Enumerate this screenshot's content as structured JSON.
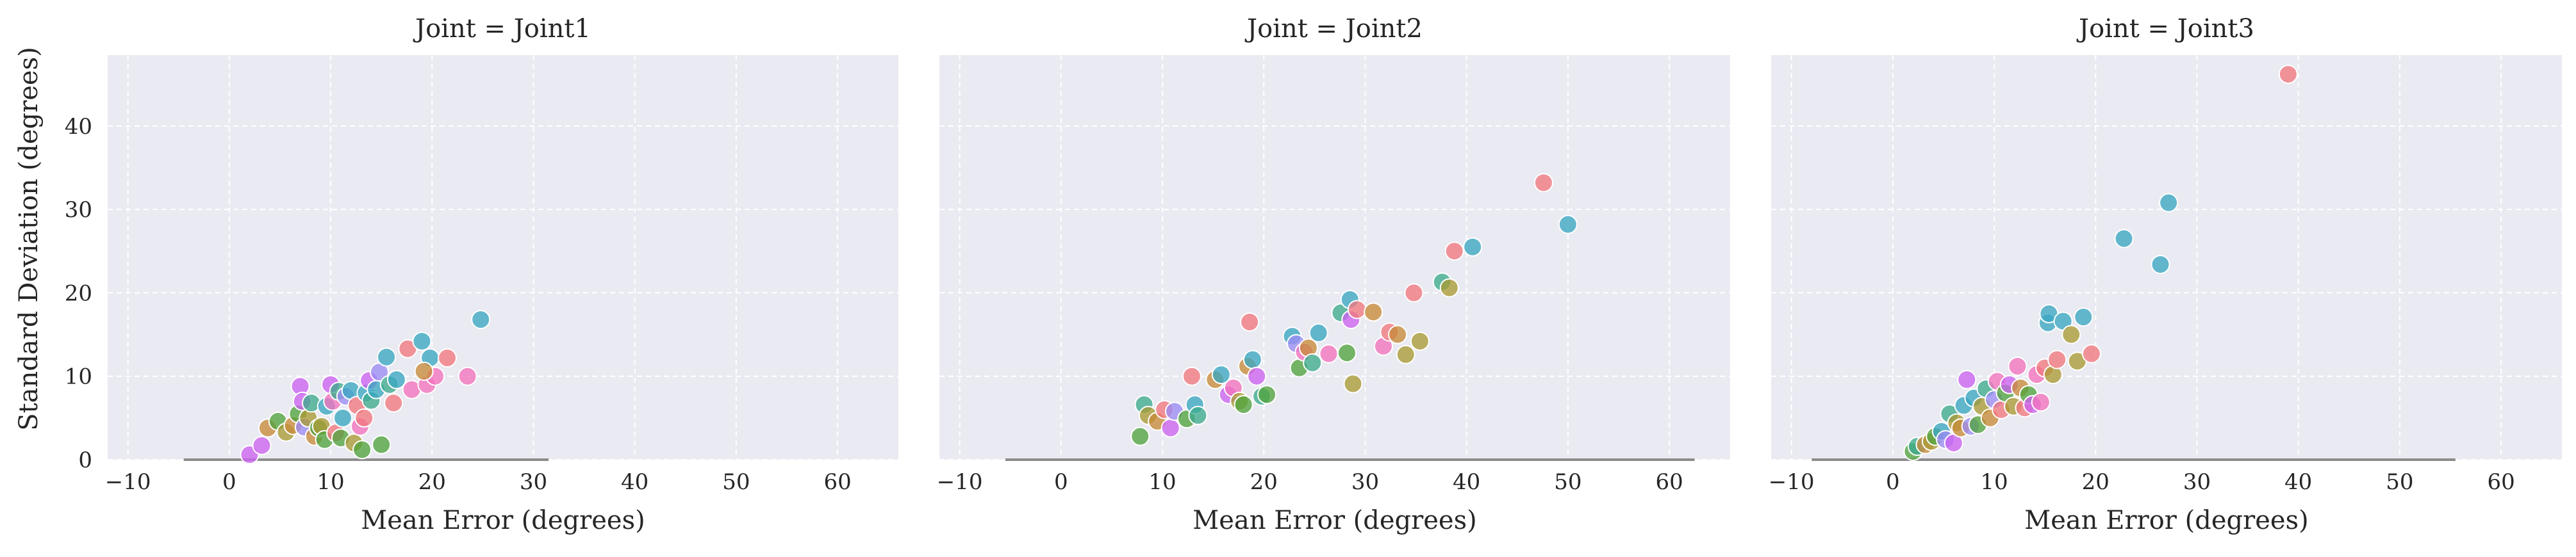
{
  "figure": {
    "ylabel": "Standard Deviation (degrees)"
  },
  "chart_data": [
    {
      "type": "scatter",
      "title": "Joint = Joint1",
      "xlabel": "Mean Error (degrees)",
      "ylabel": "Standard Deviation (degrees)",
      "xlim": [
        -12,
        66
      ],
      "ylim": [
        0,
        48.5
      ],
      "xticks": [
        "−10",
        "0",
        "10",
        "20",
        "30",
        "40",
        "50",
        "60"
      ],
      "xtick_values": [
        -10,
        0,
        10,
        20,
        30,
        40,
        50,
        60
      ],
      "yticks": [
        "0",
        "10",
        "20",
        "30",
        "40"
      ],
      "ytick_values": [
        0,
        10,
        20,
        30,
        40
      ],
      "grid": true,
      "hue_encoding": "per-marker color, no legend shown",
      "hline_segment": {
        "y": 0,
        "x_start": -4.5,
        "x_end": 31.5
      },
      "points": [
        {
          "x": 2.0,
          "y": 0.6,
          "color": "#cc61f0"
        },
        {
          "x": 3.2,
          "y": 1.7,
          "color": "#cc61f0"
        },
        {
          "x": 3.8,
          "y": 3.8,
          "color": "#c68a38"
        },
        {
          "x": 4.8,
          "y": 4.6,
          "color": "#51a33e"
        },
        {
          "x": 5.6,
          "y": 3.3,
          "color": "#a99a34"
        },
        {
          "x": 6.3,
          "y": 4.1,
          "color": "#c68a38"
        },
        {
          "x": 6.8,
          "y": 5.5,
          "color": "#51a33e"
        },
        {
          "x": 7.0,
          "y": 8.8,
          "color": "#cc61f0"
        },
        {
          "x": 7.2,
          "y": 7.0,
          "color": "#cc61f0"
        },
        {
          "x": 7.4,
          "y": 3.9,
          "color": "#9b8cf3"
        },
        {
          "x": 7.8,
          "y": 5.0,
          "color": "#a99a34"
        },
        {
          "x": 8.1,
          "y": 6.8,
          "color": "#3eaa8d"
        },
        {
          "x": 8.4,
          "y": 2.8,
          "color": "#c68a38"
        },
        {
          "x": 8.8,
          "y": 3.8,
          "color": "#51a33e"
        },
        {
          "x": 9.1,
          "y": 4.0,
          "color": "#a99a34"
        },
        {
          "x": 9.4,
          "y": 2.4,
          "color": "#51a33e"
        },
        {
          "x": 9.6,
          "y": 6.4,
          "color": "#3aa6c2"
        },
        {
          "x": 10.0,
          "y": 9.0,
          "color": "#cc61f0"
        },
        {
          "x": 10.2,
          "y": 7.0,
          "color": "#f272bd"
        },
        {
          "x": 10.5,
          "y": 3.2,
          "color": "#f1777f"
        },
        {
          "x": 10.8,
          "y": 8.2,
          "color": "#3eaa8d"
        },
        {
          "x": 11.0,
          "y": 2.6,
          "color": "#51a33e"
        },
        {
          "x": 11.2,
          "y": 5.0,
          "color": "#3aa6c2"
        },
        {
          "x": 11.5,
          "y": 7.6,
          "color": "#9b8cf3"
        },
        {
          "x": 12.0,
          "y": 8.3,
          "color": "#3aa6c2"
        },
        {
          "x": 12.3,
          "y": 2.0,
          "color": "#a99a34"
        },
        {
          "x": 12.6,
          "y": 6.5,
          "color": "#f1777f"
        },
        {
          "x": 12.9,
          "y": 4.0,
          "color": "#f272bd"
        },
        {
          "x": 13.1,
          "y": 1.2,
          "color": "#51a33e"
        },
        {
          "x": 13.3,
          "y": 5.0,
          "color": "#f1777f"
        },
        {
          "x": 13.5,
          "y": 8.0,
          "color": "#3aa6c2"
        },
        {
          "x": 13.8,
          "y": 9.5,
          "color": "#cc61f0"
        },
        {
          "x": 14.0,
          "y": 7.1,
          "color": "#3eaa8d"
        },
        {
          "x": 14.5,
          "y": 8.4,
          "color": "#3aa6c2"
        },
        {
          "x": 14.8,
          "y": 10.5,
          "color": "#9b8cf3"
        },
        {
          "x": 15.0,
          "y": 1.8,
          "color": "#51a33e"
        },
        {
          "x": 15.5,
          "y": 12.3,
          "color": "#3aa6c2"
        },
        {
          "x": 15.8,
          "y": 9.0,
          "color": "#3eaa8d"
        },
        {
          "x": 16.2,
          "y": 6.8,
          "color": "#f1777f"
        },
        {
          "x": 16.5,
          "y": 9.6,
          "color": "#3aa6c2"
        },
        {
          "x": 17.6,
          "y": 13.3,
          "color": "#f1777f"
        },
        {
          "x": 18.0,
          "y": 8.4,
          "color": "#f272bd"
        },
        {
          "x": 19.0,
          "y": 14.2,
          "color": "#3aa6c2"
        },
        {
          "x": 19.5,
          "y": 9.0,
          "color": "#f272bd"
        },
        {
          "x": 19.8,
          "y": 12.2,
          "color": "#3aa6c2"
        },
        {
          "x": 20.3,
          "y": 10.0,
          "color": "#f272bd"
        },
        {
          "x": 21.5,
          "y": 12.2,
          "color": "#f1777f"
        },
        {
          "x": 23.5,
          "y": 10.0,
          "color": "#f272bd"
        },
        {
          "x": 24.8,
          "y": 16.8,
          "color": "#3aa6c2"
        },
        {
          "x": 19.2,
          "y": 10.6,
          "color": "#c68a38"
        }
      ]
    },
    {
      "type": "scatter",
      "title": "Joint = Joint2",
      "xlabel": "Mean Error (degrees)",
      "xlim": [
        -12,
        66
      ],
      "ylim": [
        0,
        48.5
      ],
      "xticks": [
        "−10",
        "0",
        "10",
        "20",
        "30",
        "40",
        "50",
        "60"
      ],
      "xtick_values": [
        -10,
        0,
        10,
        20,
        30,
        40,
        50,
        60
      ],
      "grid": true,
      "hline_segment": {
        "y": 0,
        "x_start": -5.5,
        "x_end": 62.5
      },
      "points": [
        {
          "x": 7.8,
          "y": 2.8,
          "color": "#51a33e"
        },
        {
          "x": 8.2,
          "y": 6.6,
          "color": "#3eaa8d"
        },
        {
          "x": 8.6,
          "y": 5.3,
          "color": "#a99a34"
        },
        {
          "x": 9.5,
          "y": 4.6,
          "color": "#c68a38"
        },
        {
          "x": 10.2,
          "y": 6.0,
          "color": "#f1777f"
        },
        {
          "x": 10.8,
          "y": 3.8,
          "color": "#cc61f0"
        },
        {
          "x": 11.2,
          "y": 5.8,
          "color": "#9b8cf3"
        },
        {
          "x": 12.4,
          "y": 4.9,
          "color": "#51a33e"
        },
        {
          "x": 12.9,
          "y": 10.0,
          "color": "#f1777f"
        },
        {
          "x": 13.2,
          "y": 6.6,
          "color": "#3aa6c2"
        },
        {
          "x": 13.5,
          "y": 5.3,
          "color": "#3eaa8d"
        },
        {
          "x": 15.2,
          "y": 9.6,
          "color": "#c68a38"
        },
        {
          "x": 15.8,
          "y": 10.2,
          "color": "#3aa6c2"
        },
        {
          "x": 16.5,
          "y": 7.8,
          "color": "#cc61f0"
        },
        {
          "x": 17.0,
          "y": 8.6,
          "color": "#f272bd"
        },
        {
          "x": 17.6,
          "y": 7.0,
          "color": "#a99a34"
        },
        {
          "x": 18.0,
          "y": 6.6,
          "color": "#51a33e"
        },
        {
          "x": 18.6,
          "y": 16.5,
          "color": "#f1777f"
        },
        {
          "x": 18.4,
          "y": 11.2,
          "color": "#c68a38"
        },
        {
          "x": 18.9,
          "y": 12.0,
          "color": "#3aa6c2"
        },
        {
          "x": 19.3,
          "y": 10.0,
          "color": "#cc61f0"
        },
        {
          "x": 19.8,
          "y": 7.6,
          "color": "#3eaa8d"
        },
        {
          "x": 20.3,
          "y": 7.8,
          "color": "#51a33e"
        },
        {
          "x": 22.8,
          "y": 14.8,
          "color": "#3aa6c2"
        },
        {
          "x": 23.2,
          "y": 13.9,
          "color": "#9b8cf3"
        },
        {
          "x": 23.5,
          "y": 11.0,
          "color": "#51a33e"
        },
        {
          "x": 24.0,
          "y": 12.9,
          "color": "#f272bd"
        },
        {
          "x": 24.4,
          "y": 13.4,
          "color": "#c68a38"
        },
        {
          "x": 24.8,
          "y": 11.6,
          "color": "#3eaa8d"
        },
        {
          "x": 25.4,
          "y": 15.2,
          "color": "#3aa6c2"
        },
        {
          "x": 26.4,
          "y": 12.7,
          "color": "#f272bd"
        },
        {
          "x": 27.6,
          "y": 17.6,
          "color": "#3eaa8d"
        },
        {
          "x": 28.2,
          "y": 12.8,
          "color": "#51a33e"
        },
        {
          "x": 28.5,
          "y": 19.2,
          "color": "#3aa6c2"
        },
        {
          "x": 28.6,
          "y": 16.8,
          "color": "#cc61f0"
        },
        {
          "x": 28.8,
          "y": 9.1,
          "color": "#a99a34"
        },
        {
          "x": 29.2,
          "y": 18.0,
          "color": "#f1777f"
        },
        {
          "x": 30.8,
          "y": 17.7,
          "color": "#c68a38"
        },
        {
          "x": 31.8,
          "y": 13.6,
          "color": "#f272bd"
        },
        {
          "x": 32.4,
          "y": 15.3,
          "color": "#f1777f"
        },
        {
          "x": 33.2,
          "y": 15.0,
          "color": "#c68a38"
        },
        {
          "x": 34.0,
          "y": 12.6,
          "color": "#a99a34"
        },
        {
          "x": 34.8,
          "y": 20.0,
          "color": "#f1777f"
        },
        {
          "x": 35.4,
          "y": 14.2,
          "color": "#a99a34"
        },
        {
          "x": 37.6,
          "y": 21.3,
          "color": "#3eaa8d"
        },
        {
          "x": 38.3,
          "y": 20.6,
          "color": "#a99a34"
        },
        {
          "x": 38.8,
          "y": 25.0,
          "color": "#f1777f"
        },
        {
          "x": 40.6,
          "y": 25.5,
          "color": "#3aa6c2"
        },
        {
          "x": 47.6,
          "y": 33.2,
          "color": "#f1777f"
        },
        {
          "x": 50.0,
          "y": 28.2,
          "color": "#3aa6c2"
        }
      ]
    },
    {
      "type": "scatter",
      "title": "Joint = Joint3",
      "xlabel": "Mean Error (degrees)",
      "xlim": [
        -12,
        66
      ],
      "ylim": [
        0,
        48.5
      ],
      "xticks": [
        "−10",
        "0",
        "10",
        "20",
        "30",
        "40",
        "50",
        "60"
      ],
      "xtick_values": [
        -10,
        0,
        10,
        20,
        30,
        40,
        50,
        60
      ],
      "grid": true,
      "hline_segment": {
        "y": 0,
        "x_start": -8.0,
        "x_end": 55.5
      },
      "points": [
        {
          "x": 2.0,
          "y": 1.0,
          "color": "#51a33e"
        },
        {
          "x": 2.4,
          "y": 1.6,
          "color": "#3eaa8d"
        },
        {
          "x": 3.2,
          "y": 1.8,
          "color": "#c68a38"
        },
        {
          "x": 3.8,
          "y": 2.2,
          "color": "#a99a34"
        },
        {
          "x": 4.2,
          "y": 2.8,
          "color": "#51a33e"
        },
        {
          "x": 4.8,
          "y": 3.4,
          "color": "#3aa6c2"
        },
        {
          "x": 5.2,
          "y": 2.4,
          "color": "#9b8cf3"
        },
        {
          "x": 5.6,
          "y": 5.5,
          "color": "#3eaa8d"
        },
        {
          "x": 6.0,
          "y": 2.0,
          "color": "#cc61f0"
        },
        {
          "x": 6.3,
          "y": 4.4,
          "color": "#a99a34"
        },
        {
          "x": 6.7,
          "y": 3.8,
          "color": "#c68a38"
        },
        {
          "x": 7.0,
          "y": 6.5,
          "color": "#3aa6c2"
        },
        {
          "x": 7.3,
          "y": 9.6,
          "color": "#cc61f0"
        },
        {
          "x": 7.7,
          "y": 4.0,
          "color": "#9b8cf3"
        },
        {
          "x": 8.0,
          "y": 7.4,
          "color": "#3aa6c2"
        },
        {
          "x": 8.4,
          "y": 4.2,
          "color": "#51a33e"
        },
        {
          "x": 8.8,
          "y": 6.4,
          "color": "#a99a34"
        },
        {
          "x": 9.2,
          "y": 8.5,
          "color": "#3eaa8d"
        },
        {
          "x": 9.6,
          "y": 5.0,
          "color": "#c68a38"
        },
        {
          "x": 10.0,
          "y": 7.2,
          "color": "#9b8cf3"
        },
        {
          "x": 10.3,
          "y": 9.4,
          "color": "#f272bd"
        },
        {
          "x": 10.7,
          "y": 6.0,
          "color": "#f1777f"
        },
        {
          "x": 11.1,
          "y": 8.0,
          "color": "#51a33e"
        },
        {
          "x": 11.5,
          "y": 9.0,
          "color": "#cc61f0"
        },
        {
          "x": 11.9,
          "y": 6.4,
          "color": "#a99a34"
        },
        {
          "x": 12.3,
          "y": 11.2,
          "color": "#f272bd"
        },
        {
          "x": 12.6,
          "y": 8.6,
          "color": "#c68a38"
        },
        {
          "x": 13.0,
          "y": 6.2,
          "color": "#f1777f"
        },
        {
          "x": 13.4,
          "y": 7.8,
          "color": "#51a33e"
        },
        {
          "x": 13.8,
          "y": 6.6,
          "color": "#cc61f0"
        },
        {
          "x": 14.2,
          "y": 10.2,
          "color": "#f272bd"
        },
        {
          "x": 14.6,
          "y": 6.9,
          "color": "#f272bd"
        },
        {
          "x": 15.0,
          "y": 11.0,
          "color": "#f1777f"
        },
        {
          "x": 15.3,
          "y": 16.4,
          "color": "#3aa6c2"
        },
        {
          "x": 15.4,
          "y": 17.5,
          "color": "#3aa6c2"
        },
        {
          "x": 15.8,
          "y": 10.2,
          "color": "#a99a34"
        },
        {
          "x": 16.2,
          "y": 12.0,
          "color": "#f1777f"
        },
        {
          "x": 16.8,
          "y": 16.6,
          "color": "#3aa6c2"
        },
        {
          "x": 17.6,
          "y": 15.0,
          "color": "#a99a34"
        },
        {
          "x": 18.2,
          "y": 11.8,
          "color": "#a99a34"
        },
        {
          "x": 18.8,
          "y": 17.1,
          "color": "#3aa6c2"
        },
        {
          "x": 19.6,
          "y": 12.7,
          "color": "#f1777f"
        },
        {
          "x": 22.8,
          "y": 26.5,
          "color": "#3aa6c2"
        },
        {
          "x": 26.4,
          "y": 23.4,
          "color": "#3aa6c2"
        },
        {
          "x": 27.2,
          "y": 30.8,
          "color": "#3aa6c2"
        },
        {
          "x": 39.0,
          "y": 46.2,
          "color": "#f1777f"
        }
      ]
    }
  ]
}
